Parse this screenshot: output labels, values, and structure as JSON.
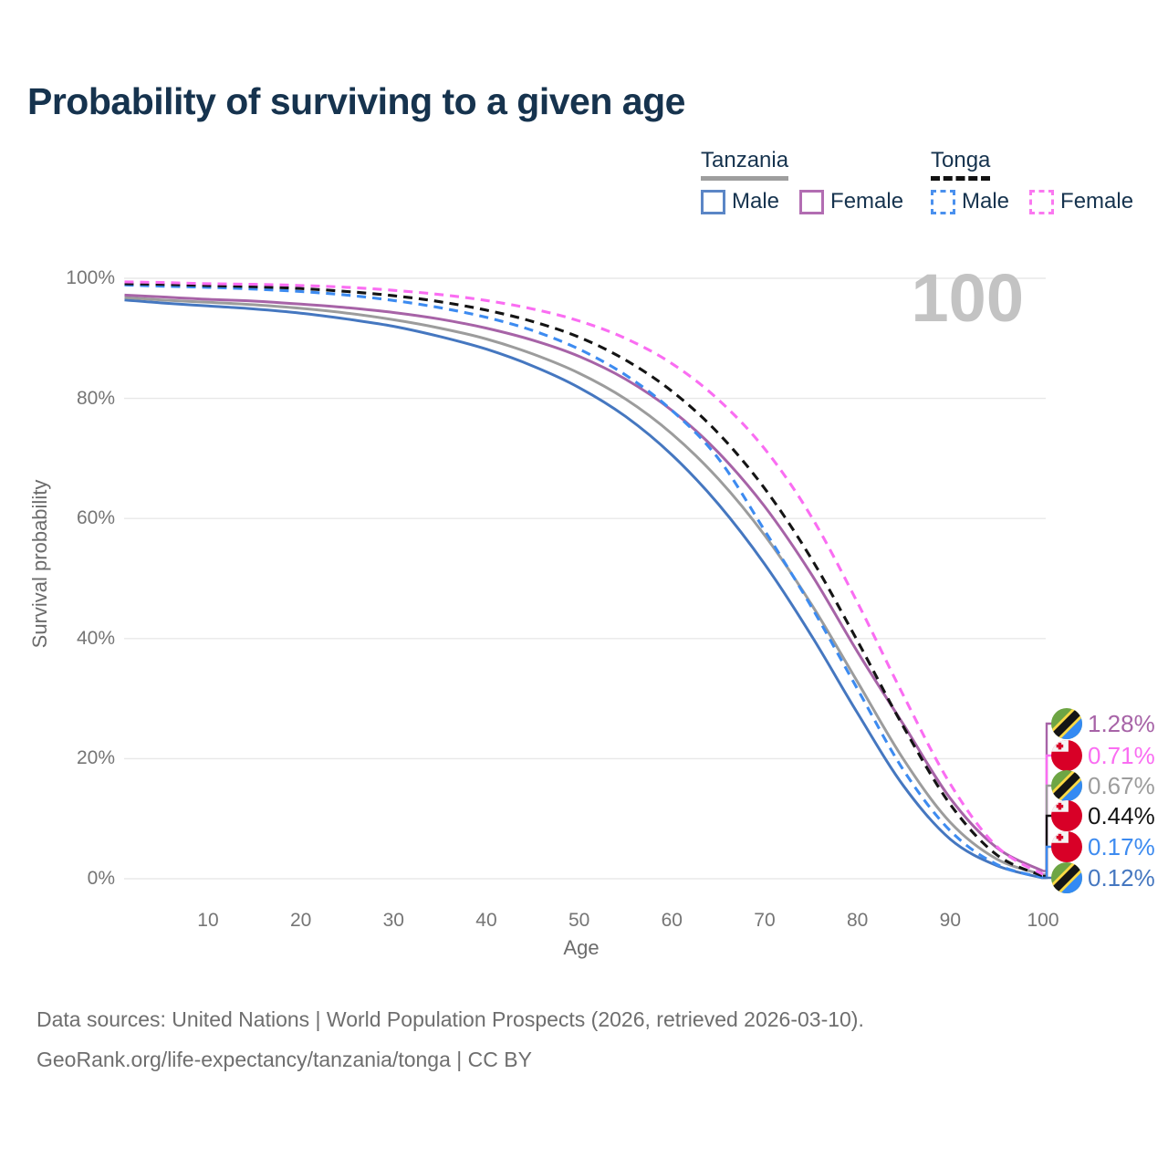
{
  "title": "Probability of surviving to a given age",
  "watermark_age": "100",
  "legend": {
    "groups": [
      {
        "label": "Tanzania",
        "line_style": "solid",
        "underline_color": "#9e9e9e",
        "items": [
          {
            "label": "Male",
            "color": "#5b86c6"
          },
          {
            "label": "Female",
            "color": "#b26db2"
          }
        ]
      },
      {
        "label": "Tonga",
        "line_style": "dashed",
        "underline_color": "#111111",
        "items": [
          {
            "label": "Male",
            "color": "#4a90ee"
          },
          {
            "label": "Female",
            "color": "#fa78f0"
          }
        ]
      }
    ]
  },
  "chart_data": {
    "type": "line",
    "title": "Probability of surviving to a given age",
    "xlabel": "Age",
    "ylabel": "Survival probability",
    "xlim": [
      0,
      100
    ],
    "ylim": [
      0,
      100
    ],
    "x_ticks": [
      10,
      20,
      30,
      40,
      50,
      60,
      70,
      80,
      90,
      100
    ],
    "y_ticks": [
      {
        "value": 0,
        "label": "0%"
      },
      {
        "value": 20,
        "label": "20%"
      },
      {
        "value": 40,
        "label": "40%"
      },
      {
        "value": 60,
        "label": "60%"
      },
      {
        "value": 80,
        "label": "80%"
      },
      {
        "value": 100,
        "label": "100%"
      }
    ],
    "grid": "horizontal",
    "legend_position": "top-right",
    "ages": [
      1,
      5,
      10,
      15,
      20,
      25,
      30,
      35,
      40,
      45,
      50,
      55,
      60,
      65,
      70,
      75,
      80,
      85,
      90,
      95,
      100
    ],
    "series": [
      {
        "name": "Tanzania Male",
        "country": "Tanzania",
        "sex": "Male",
        "style": "solid",
        "color": "#4577c0",
        "end_label": "0.12%",
        "values": [
          96.4,
          95.9,
          95.4,
          94.9,
          94.2,
          93.2,
          92.0,
          90.3,
          88.2,
          85.4,
          81.8,
          77.0,
          70.6,
          62.4,
          52.4,
          40.6,
          27.6,
          15.4,
          6.6,
          2.2,
          0.12
        ]
      },
      {
        "name": "Tanzania (both sexes)",
        "country": "Tanzania",
        "sex": "Both",
        "style": "solid",
        "color": "#9c9c9c",
        "end_label": "0.67%",
        "values": [
          96.8,
          96.4,
          96.0,
          95.6,
          95.0,
          94.2,
          93.1,
          91.7,
          89.9,
          87.4,
          84.2,
          79.9,
          74.1,
          66.6,
          57.2,
          45.8,
          32.8,
          19.8,
          9.4,
          3.3,
          0.67
        ]
      },
      {
        "name": "Tanzania Female",
        "country": "Tanzania",
        "sex": "Female",
        "style": "solid",
        "color": "#a763a7",
        "end_label": "1.28%",
        "values": [
          97.2,
          96.9,
          96.5,
          96.2,
          95.7,
          95.1,
          94.3,
          93.2,
          91.7,
          89.7,
          87.0,
          83.2,
          78.0,
          71.0,
          62.0,
          50.8,
          37.8,
          25.6,
          13.4,
          5.2,
          1.28
        ]
      },
      {
        "name": "Tonga Male",
        "country": "Tonga",
        "sex": "Male",
        "style": "dashed",
        "color": "#3d8bf0",
        "end_label": "0.17%",
        "values": [
          98.9,
          98.7,
          98.5,
          98.2,
          97.8,
          97.2,
          96.3,
          95.1,
          93.5,
          91.3,
          88.2,
          83.9,
          78.0,
          70.0,
          58.0,
          45.4,
          31.6,
          18.0,
          8.0,
          2.4,
          0.17
        ]
      },
      {
        "name": "Tonga (both sexes)",
        "country": "Tonga",
        "sex": "Both",
        "style": "dashed",
        "color": "#141414",
        "end_label": "0.44%",
        "values": [
          99.1,
          99.0,
          98.8,
          98.6,
          98.3,
          97.8,
          97.1,
          96.1,
          94.7,
          92.8,
          90.2,
          86.4,
          81.2,
          74.2,
          65.0,
          53.4,
          39.6,
          25.2,
          12.4,
          4.0,
          0.44
        ]
      },
      {
        "name": "Tonga Female",
        "country": "Tonga",
        "sex": "Female",
        "style": "dashed",
        "color": "#fa6df2",
        "end_label": "0.71%",
        "values": [
          99.4,
          99.3,
          99.1,
          99.0,
          98.8,
          98.5,
          98.0,
          97.3,
          96.3,
          94.9,
          92.9,
          90.0,
          85.8,
          79.8,
          71.6,
          60.4,
          46.0,
          30.4,
          15.8,
          5.4,
          0.71
        ]
      }
    ]
  },
  "footer": {
    "line1": "Data sources: United Nations | World Population Prospects (2026, retrieved 2026-03-10).",
    "line2": "GeoRank.org/life-expectancy/tanzania/tonga | CC BY"
  }
}
